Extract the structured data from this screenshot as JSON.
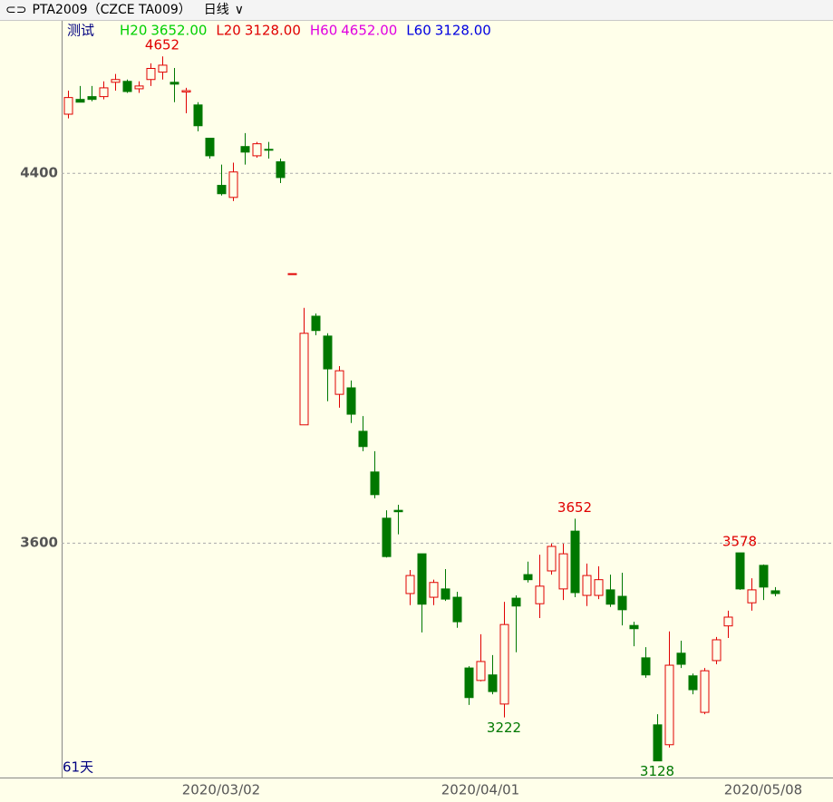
{
  "header": {
    "symbol": "PTA2009（CZCE TA009）",
    "period": "日线"
  },
  "chart_data": {
    "type": "candlestick",
    "study": "测试",
    "indicators": [
      {
        "label": "H20",
        "value": "3652.00",
        "color": "#00d000"
      },
      {
        "label": "L20",
        "value": "3128.00",
        "color": "#e00000"
      },
      {
        "label": "H60",
        "value": "4652.00",
        "color": "#e000e0"
      },
      {
        "label": "L60",
        "value": "3128.00",
        "color": "#0000e0"
      }
    ],
    "span_label": "61天",
    "categories": [
      null,
      null,
      null,
      null,
      null,
      null,
      null,
      null,
      null,
      null,
      null,
      null,
      null,
      "2020/03/02",
      null,
      null,
      null,
      null,
      null,
      null,
      null,
      null,
      null,
      null,
      null,
      null,
      null,
      null,
      null,
      null,
      null,
      null,
      null,
      null,
      null,
      "2020/04/01",
      null,
      null,
      null,
      null,
      null,
      null,
      null,
      null,
      null,
      null,
      null,
      null,
      null,
      null,
      null,
      null,
      null,
      null,
      null,
      null,
      null,
      null,
      null,
      "2020/05/08",
      null
    ],
    "open": [
      4527,
      4559,
      4565,
      4565,
      4596,
      4598,
      4582,
      4602,
      4618,
      4596,
      4575,
      4547,
      4475,
      4373,
      4347,
      4457,
      4437,
      4451,
      4424,
      4182,
      3855,
      4090,
      4047,
      3921,
      3935,
      3841,
      3753,
      3653,
      3670,
      3490,
      3576,
      3482,
      3500,
      3482,
      3329,
      3302,
      3314,
      3251,
      3480,
      3531,
      3468,
      3539,
      3500,
      3625,
      3486,
      3486,
      3498,
      3484,
      3421,
      3351,
      3206,
      3163,
      3361,
      3312,
      3233,
      3345,
      3420,
      3578,
      3470,
      3551,
      3496
    ],
    "high": [
      4578,
      4588,
      4588,
      4598,
      4614,
      4602,
      4598,
      4637,
      4652,
      4627,
      4584,
      4553,
      4475,
      4418,
      4422,
      4486,
      4467,
      4467,
      4431,
      4182,
      4108,
      4096,
      4053,
      3982,
      3951,
      3874,
      3798,
      3670,
      3682,
      3541,
      3576,
      3520,
      3543,
      3494,
      3333,
      3402,
      3357,
      3472,
      3486,
      3559,
      3574,
      3598,
      3598,
      3652,
      3555,
      3549,
      3531,
      3535,
      3429,
      3374,
      3229,
      3408,
      3388,
      3317,
      3329,
      3396,
      3453,
      3578,
      3523,
      3553,
      3504
    ],
    "low": [
      4518,
      4553,
      4555,
      4559,
      4578,
      4573,
      4573,
      4588,
      4602,
      4553,
      4529,
      4490,
      4431,
      4351,
      4339,
      4418,
      4433,
      4431,
      4378,
      4182,
      3855,
      4049,
      3906,
      3892,
      3859,
      3798,
      3696,
      3568,
      3618,
      3465,
      3406,
      3465,
      3474,
      3416,
      3249,
      3300,
      3272,
      3222,
      3363,
      3514,
      3437,
      3531,
      3476,
      3482,
      3463,
      3478,
      3461,
      3421,
      3376,
      3308,
      3128,
      3157,
      3329,
      3272,
      3229,
      3337,
      3394,
      3498,
      3453,
      3476,
      3484
    ],
    "close": [
      4563,
      4553,
      4559,
      4584,
      4602,
      4576,
      4588,
      4626,
      4633,
      4592,
      4578,
      4502,
      4437,
      4355,
      4402,
      4445,
      4463,
      4449,
      4390,
      4182,
      4053,
      4059,
      3976,
      3972,
      3878,
      3808,
      3704,
      3570,
      3667,
      3529,
      3467,
      3514,
      3478,
      3429,
      3265,
      3343,
      3278,
      3423,
      3463,
      3520,
      3506,
      3592,
      3576,
      3492,
      3529,
      3520,
      3467,
      3455,
      3414,
      3314,
      3128,
      3335,
      3337,
      3282,
      3323,
      3390,
      3439,
      3500,
      3498,
      3504,
      3490
    ],
    "up_color": "#e00000",
    "down_color": "#007800",
    "high_labels": [
      8,
      43,
      57
    ],
    "low_labels": [
      37,
      50
    ],
    "ylim": [
      3092,
      4725
    ],
    "yticks": [
      3600,
      4400
    ],
    "grid": true
  }
}
